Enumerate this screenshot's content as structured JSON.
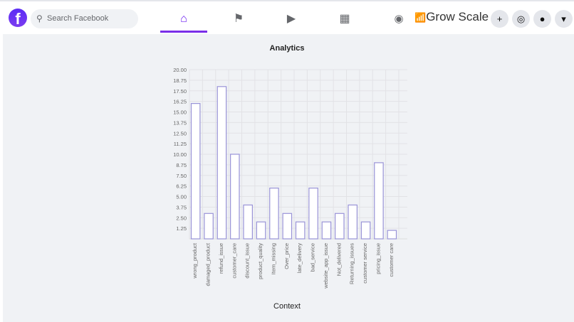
{
  "nav": {
    "logo": "f",
    "search_placeholder": "Search Facebook",
    "search_icon": "search-icon",
    "tabs": [
      {
        "name": "home",
        "icon": "⌂"
      },
      {
        "name": "pages",
        "icon": "⚑"
      },
      {
        "name": "watch",
        "icon": "▶"
      },
      {
        "name": "marketplace",
        "icon": "▦"
      }
    ],
    "groups_icon": "◉",
    "brand": "Grow Scale",
    "create": "+",
    "messenger": "◎",
    "notifications": "●",
    "menu": "▾",
    "accent": "#6a1cf0"
  },
  "chart_data": {
    "type": "bar",
    "title": "Analytics",
    "xlabel": "Context",
    "ylabel": "",
    "categories": [
      "wrong_product",
      "damaged_product",
      "refund_issue",
      "customer_care",
      "discount_issue",
      "product_quality",
      "Item_missing",
      "Over_price",
      "late_delivery",
      "bad_service",
      "website_app_issue",
      "Not_delivered",
      "Returning_issues",
      "customer service",
      "pricing_issue",
      "customer care"
    ],
    "values": [
      16,
      3,
      18,
      10,
      4,
      2,
      6,
      3,
      2,
      6,
      2,
      3,
      4,
      2,
      9,
      1
    ],
    "ylim": [
      0,
      20
    ],
    "yticks": [
      "1.25",
      "2.50",
      "3.75",
      "5.00",
      "6.25",
      "7.50",
      "8.75",
      "10.00",
      "11.25",
      "12.50",
      "13.75",
      "15.00",
      "16.25",
      "17.50",
      "18.75",
      "20.00"
    ],
    "grid": true,
    "bar_fill": "#ffffff",
    "bar_border": "#9a94d8"
  }
}
